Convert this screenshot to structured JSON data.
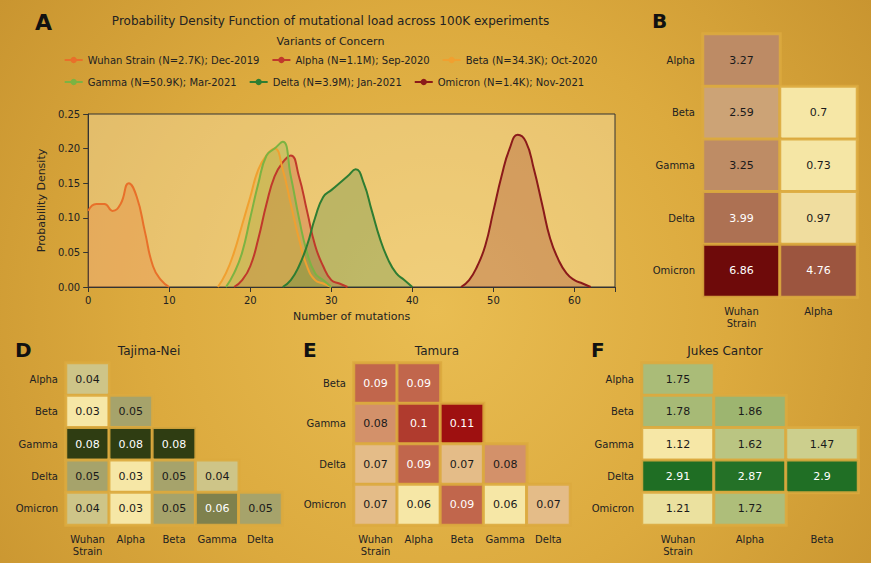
{
  "chart_data": [
    {
      "panel": "A",
      "type": "line",
      "title": "Probability Density Function of mutational load across 100K experiments",
      "legend_title": "Variants of Concern",
      "x_label": "Number of mutations",
      "y_label": "Probability Density",
      "legend": "top",
      "grid": false,
      "xlim": [
        0,
        65
      ],
      "xticks": [
        0,
        10,
        20,
        30,
        40,
        50,
        60
      ],
      "ylim": [
        0,
        0.25
      ],
      "yticks": [
        {
          "value": 0,
          "label": "0.00"
        },
        {
          "value": 0.05,
          "label": "0.05"
        },
        {
          "value": 0.1,
          "label": "0.10"
        },
        {
          "value": 0.15,
          "label": "0.15"
        },
        {
          "value": 0.2,
          "label": "0.20"
        },
        {
          "value": 0.25,
          "label": "0.25"
        }
      ],
      "series": [
        {
          "name": "Wuhan Strain (N=2.7K); Dec-2019",
          "color": "#e8702a",
          "x": [
            0,
            1,
            2,
            3,
            4,
            5,
            6,
            7,
            8,
            9,
            10
          ],
          "values": [
            0.11,
            0.12,
            0.12,
            0.11,
            0.12,
            0.15,
            0.13,
            0.08,
            0.03,
            0.01,
            0
          ]
        },
        {
          "name": "Alpha (N=1.1M); Sep-2020",
          "color": "#c0392b",
          "x": [
            18,
            19,
            20,
            21,
            22,
            23,
            24,
            25,
            26,
            27,
            28,
            29,
            30,
            31,
            32
          ],
          "values": [
            0,
            0.01,
            0.03,
            0.07,
            0.12,
            0.16,
            0.18,
            0.19,
            0.16,
            0.11,
            0.06,
            0.03,
            0.01,
            0.005,
            0
          ]
        },
        {
          "name": "Beta (N=34.3K); Oct-2020",
          "color": "#f0a030",
          "x": [
            16,
            17,
            18,
            19,
            20,
            21,
            22,
            23,
            24,
            25,
            26,
            27,
            28,
            29,
            30
          ],
          "values": [
            0,
            0.02,
            0.05,
            0.09,
            0.13,
            0.17,
            0.19,
            0.2,
            0.17,
            0.12,
            0.07,
            0.03,
            0.01,
            0.005,
            0
          ]
        },
        {
          "name": "Gamma (N=50.9K); Mar-2021",
          "color": "#7cb342",
          "x": [
            17,
            18,
            19,
            20,
            21,
            22,
            23,
            24,
            25,
            26,
            27,
            28,
            29,
            30
          ],
          "values": [
            0,
            0.02,
            0.05,
            0.1,
            0.15,
            0.19,
            0.2,
            0.21,
            0.16,
            0.1,
            0.05,
            0.02,
            0.01,
            0
          ]
        },
        {
          "name": "Delta (N=3.9M); Jan-2021",
          "color": "#2e7d32",
          "x": [
            24,
            25,
            26,
            27,
            28,
            29,
            30,
            31,
            32,
            33,
            34,
            35,
            36,
            37,
            38,
            39,
            40
          ],
          "values": [
            0,
            0.01,
            0.03,
            0.06,
            0.1,
            0.13,
            0.14,
            0.15,
            0.16,
            0.17,
            0.15,
            0.11,
            0.07,
            0.04,
            0.02,
            0.01,
            0
          ]
        },
        {
          "name": "Omicron (N=1.4K); Nov-2021",
          "color": "#8b1a1a",
          "x": [
            46,
            47,
            48,
            49,
            50,
            51,
            52,
            53,
            54,
            55,
            56,
            57,
            58,
            59,
            60,
            61,
            62
          ],
          "values": [
            0,
            0.01,
            0.03,
            0.06,
            0.11,
            0.16,
            0.2,
            0.22,
            0.21,
            0.17,
            0.12,
            0.07,
            0.04,
            0.02,
            0.01,
            0.005,
            0
          ]
        }
      ]
    },
    {
      "panel": "B",
      "type": "heatmap",
      "color": "#6e0a0a",
      "data_labels": true,
      "x": [
        "Wuhan Strain",
        "Alpha"
      ],
      "y": [
        "Alpha",
        "Beta",
        "Gamma",
        "Delta",
        "Omicron"
      ],
      "cells": [
        [
          3.27,
          null
        ],
        [
          2.59,
          0.7
        ],
        [
          3.25,
          0.73
        ],
        [
          3.99,
          0.97
        ],
        [
          6.86,
          4.76
        ]
      ]
    },
    {
      "panel": "D",
      "type": "heatmap",
      "title": "Tajima-Nei",
      "color": "#2f3d12",
      "data_labels": true,
      "x": [
        "Wuhan Strain",
        "Alpha",
        "Beta",
        "Gamma",
        "Delta"
      ],
      "y": [
        "Alpha",
        "Beta",
        "Gamma",
        "Delta",
        "Omicron"
      ],
      "cells": [
        [
          0.04,
          null,
          null,
          null,
          null
        ],
        [
          0.03,
          0.05,
          null,
          null,
          null
        ],
        [
          0.08,
          0.08,
          0.08,
          null,
          null
        ],
        [
          0.05,
          0.03,
          0.05,
          0.04,
          null
        ],
        [
          0.04,
          0.03,
          0.05,
          0.06,
          0.05
        ]
      ]
    },
    {
      "panel": "E",
      "type": "heatmap",
      "title": "Tamura",
      "color": "#9e1010",
      "data_labels": true,
      "x": [
        "Wuhan Strain",
        "Alpha",
        "Beta",
        "Gamma",
        "Delta"
      ],
      "y": [
        "Beta",
        "Gamma",
        "Delta",
        "Omicron"
      ],
      "cells": [
        [
          0.09,
          0.09,
          null,
          null,
          null
        ],
        [
          0.08,
          0.1,
          0.11,
          null,
          null
        ],
        [
          0.07,
          0.09,
          0.07,
          0.08,
          null
        ],
        [
          0.07,
          0.06,
          0.09,
          0.06,
          0.07
        ]
      ]
    },
    {
      "panel": "F",
      "type": "heatmap",
      "title": "Jukes Cantor",
      "color": "#1f6e24",
      "data_labels": true,
      "x": [
        "Wuhan Strain",
        "Alpha",
        "Beta"
      ],
      "y": [
        "Alpha",
        "Beta",
        "Gamma",
        "Delta",
        "Omicron"
      ],
      "cells": [
        [
          1.75,
          null,
          null
        ],
        [
          1.78,
          1.86,
          null
        ],
        [
          1.12,
          1.62,
          1.47
        ],
        [
          2.91,
          2.87,
          2.9
        ],
        [
          1.21,
          1.72,
          null
        ]
      ]
    }
  ]
}
